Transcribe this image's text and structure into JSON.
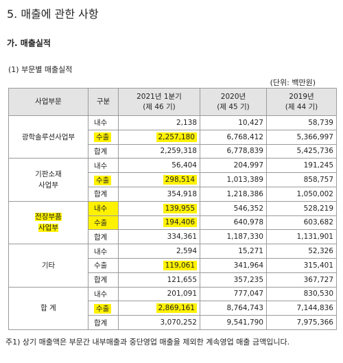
{
  "header": {
    "title": "5. 매출에 관한 사항",
    "subtitle": "가. 매출실적",
    "caption": "(1) 부문별 매출실적",
    "unit": "(단위: 백만원)"
  },
  "table": {
    "columns": [
      "사업부문",
      "구분",
      "2021년 1분기\n(제 46 기)",
      "2020년\n(제 45 기)",
      "2019년\n(제 44 기)"
    ],
    "groups": [
      {
        "name": "광학솔루션사업부",
        "rows": [
          [
            "내수",
            "2,138",
            "10,427",
            "58,739"
          ],
          [
            "수출",
            "2,257,180",
            "6,768,412",
            "5,366,997"
          ],
          [
            "합계",
            "2,259,318",
            "6,778,839",
            "5,425,736"
          ]
        ]
      },
      {
        "name": "기판소재\n사업부",
        "rows": [
          [
            "내수",
            "56,404",
            "204,997",
            "191,245"
          ],
          [
            "수출",
            "298,514",
            "1,013,389",
            "858,757"
          ],
          [
            "합계",
            "354,918",
            "1,218,386",
            "1,050,002"
          ]
        ]
      },
      {
        "name": "전장부품\n사업부",
        "rows": [
          [
            "내수",
            "139,955",
            "546,352",
            "528,219"
          ],
          [
            "수출",
            "194,406",
            "640,978",
            "603,682"
          ],
          [
            "합계",
            "334,361",
            "1,187,330",
            "1,131,901"
          ]
        ]
      },
      {
        "name": "기타",
        "rows": [
          [
            "내수",
            "2,594",
            "15,271",
            "52,326"
          ],
          [
            "수출",
            "119,061",
            "341,964",
            "315,401"
          ],
          [
            "합계",
            "121,655",
            "357,235",
            "367,727"
          ]
        ]
      },
      {
        "name": "합 계",
        "rows": [
          [
            "내수",
            "201,091",
            "777,047",
            "830,530"
          ],
          [
            "수출",
            "2,869,161",
            "8,764,743",
            "7,144,836"
          ],
          [
            "합계",
            "3,070,252",
            "9,541,790",
            "7,975,366"
          ]
        ]
      }
    ]
  },
  "footnote": "주1) 상기 매출액은 부문간 내부매출과 중단영업 매출을 제외한 계속영업 매출 금액입니다."
}
